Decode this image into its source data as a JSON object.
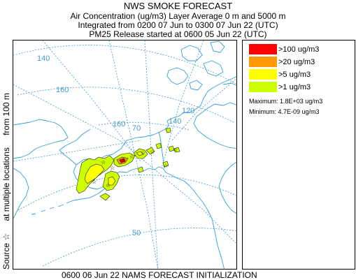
{
  "header": {
    "title": "NWS SMOKE FORECAST",
    "line2": "Air Concentration (ug/m3) Layer Average    0 m and  5000 m",
    "line3": "Integrated from 0200 07 Jun to 0300 07 Jun 22 (UTC)",
    "line4": "PM25 Release started at 0600 05 Jun 22 (UTC)"
  },
  "side_label": {
    "source": "Source ☆",
    "locations": "at multiple locations",
    "height": "from  100 m"
  },
  "legend": {
    "items": [
      {
        "label": ">100 ug/m3",
        "color": "#ff0000"
      },
      {
        "label": ">20 ug/m3",
        "color": "#ff9900"
      },
      {
        "label": ">5 ug/m3",
        "color": "#ffff00"
      },
      {
        "label": ">1 ug/m3",
        "color": "#ccff00"
      }
    ],
    "maximum": "Maximum: 1.8E+03 ug/m3",
    "minimum": "Minimum: 4.7E-09 ug/m3"
  },
  "map": {
    "graticule_labels": {
      "lon_140_west": "140",
      "lon_160_left": "160",
      "lon_160_mid": "160",
      "lon_140_right": "140",
      "lon_120": "120",
      "lat_70": "70",
      "lat_50": "50"
    },
    "colors": {
      "graticule": "#4499cc",
      "coastline": "#33a0d8"
    }
  },
  "footer": "0600 06 Jun 22 NAMS FORECAST INITIALIZATION"
}
